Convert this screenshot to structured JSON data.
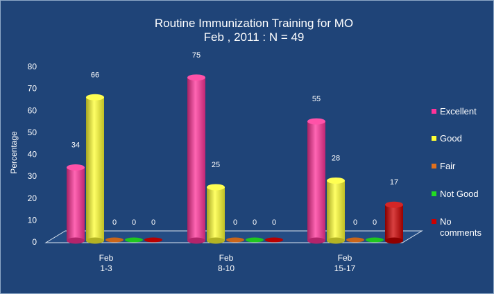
{
  "chart_data": {
    "type": "bar",
    "title": "Routine Immunization Training for MO",
    "subtitle": "Feb , 2011 : N = 49",
    "ylabel": "Percentage",
    "xlabel": "",
    "ylim": [
      0,
      80
    ],
    "yticks": [
      0,
      10,
      20,
      30,
      40,
      50,
      60,
      70,
      80
    ],
    "grid": false,
    "legend_position": "right",
    "categories": [
      {
        "line1": "Feb",
        "line2": "1-3"
      },
      {
        "line1": "Feb",
        "line2": "8-10"
      },
      {
        "line1": "Feb",
        "line2": "15-17"
      }
    ],
    "series": [
      {
        "name": "Excellent",
        "color": "#ff3399",
        "labels": [
          "34",
          "75",
          "55"
        ],
        "values": [
          34,
          75,
          55
        ]
      },
      {
        "name": "Good",
        "color": "#ffff33",
        "labels": [
          "66",
          "25",
          "28"
        ],
        "values": [
          66,
          25,
          28
        ]
      },
      {
        "name": "Fair",
        "color": "#e0701c",
        "labels": [
          "0",
          "0",
          "0"
        ],
        "values": [
          0,
          0,
          0
        ]
      },
      {
        "name": "Not Good",
        "color": "#22dd22",
        "labels": [
          "0",
          "0",
          "0"
        ],
        "values": [
          0,
          0,
          0
        ]
      },
      {
        "name": "No\ncomments",
        "color": "#cc0000",
        "labels": [
          "0",
          "0",
          "17"
        ],
        "values": [
          0,
          0,
          17
        ]
      }
    ]
  }
}
